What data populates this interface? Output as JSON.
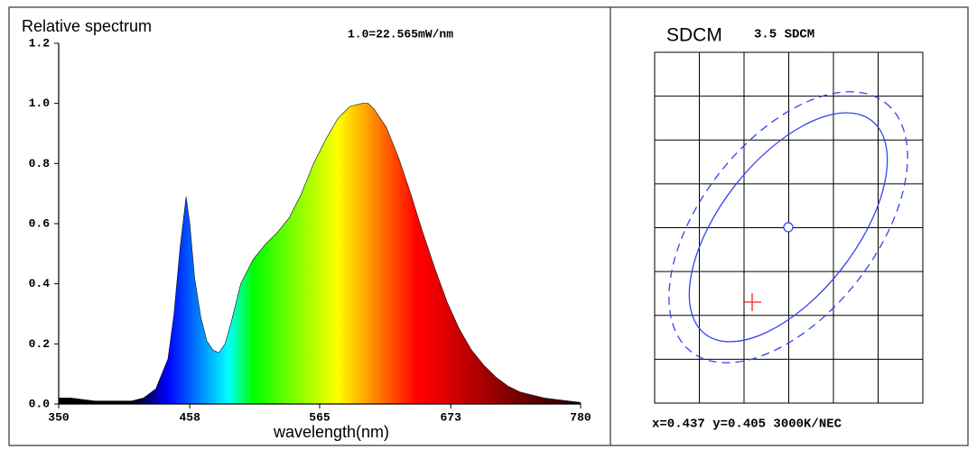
{
  "chart_data": [
    {
      "type": "area",
      "title": "Relative spectrum",
      "annotation": "1.0=22.565mW/nm",
      "x_label": "wavelength(nm)",
      "x": [
        350,
        360,
        370,
        380,
        390,
        400,
        410,
        420,
        430,
        440,
        445,
        450,
        455,
        458,
        462,
        467,
        472,
        477,
        482,
        487,
        492,
        500,
        510,
        520,
        530,
        540,
        550,
        560,
        570,
        580,
        590,
        600,
        605,
        610,
        620,
        630,
        640,
        650,
        660,
        670,
        680,
        690,
        700,
        710,
        720,
        730,
        740,
        750,
        760,
        770,
        780
      ],
      "values": [
        0.02,
        0.02,
        0.015,
        0.01,
        0.01,
        0.01,
        0.01,
        0.02,
        0.05,
        0.15,
        0.3,
        0.52,
        0.69,
        0.6,
        0.42,
        0.29,
        0.21,
        0.18,
        0.17,
        0.2,
        0.27,
        0.4,
        0.48,
        0.53,
        0.57,
        0.62,
        0.7,
        0.8,
        0.88,
        0.95,
        0.99,
        1.0,
        1.0,
        0.98,
        0.92,
        0.82,
        0.7,
        0.57,
        0.45,
        0.34,
        0.25,
        0.18,
        0.13,
        0.09,
        0.06,
        0.04,
        0.03,
        0.02,
        0.015,
        0.01,
        0.005
      ],
      "xlim": [
        350,
        780
      ],
      "xticks": [
        350,
        458,
        565,
        673,
        780
      ],
      "ylim": [
        0,
        1.2
      ],
      "yticks": [
        {
          "value": 0,
          "label": "0.0"
        },
        0.2,
        0.4,
        0.6,
        0.8,
        {
          "value": 1,
          "label": "1.0"
        },
        1.2
      ]
    },
    {
      "type": "sdcm",
      "title": "SDCM",
      "subtitle": "3.5 SDCM",
      "annotation": "x=0.437 y=0.405 3000K/NEC"
    }
  ]
}
